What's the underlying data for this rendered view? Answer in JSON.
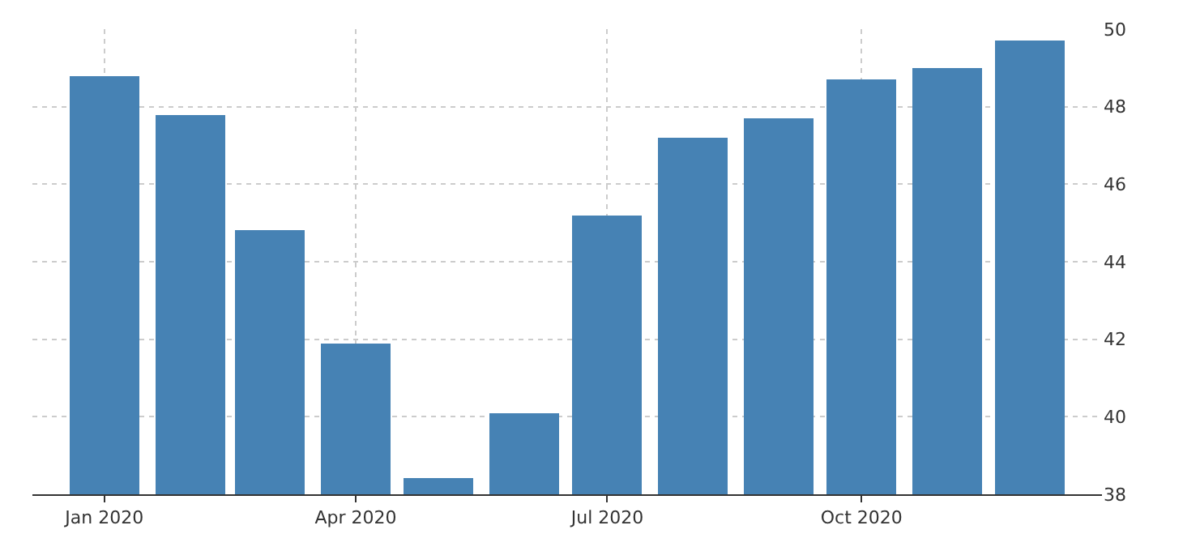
{
  "chart_data": {
    "type": "bar",
    "x": [
      "2020-01",
      "2020-02",
      "2020-03",
      "2020-04",
      "2020-05",
      "2020-06",
      "2020-07",
      "2020-08",
      "2020-09",
      "2020-10",
      "2020-11",
      "2020-12"
    ],
    "values": [
      48.8,
      47.8,
      44.8,
      41.9,
      38.4,
      40.1,
      45.2,
      47.2,
      47.7,
      48.7,
      49.0,
      49.7
    ],
    "color": "#4682b4",
    "xlim": [
      "2019-12-06",
      "2020-12-27"
    ],
    "xticks": [
      {
        "value": "2020-01",
        "label": "Jan 2020"
      },
      {
        "value": "2020-04",
        "label": "Apr 2020"
      },
      {
        "value": "2020-07",
        "label": "Jul 2020"
      },
      {
        "value": "2020-10",
        "label": "Oct 2020"
      }
    ],
    "ylim": [
      38,
      50
    ],
    "yticks": [
      38,
      40,
      42,
      44,
      46,
      48,
      50
    ],
    "grid": true,
    "legend": false
  }
}
